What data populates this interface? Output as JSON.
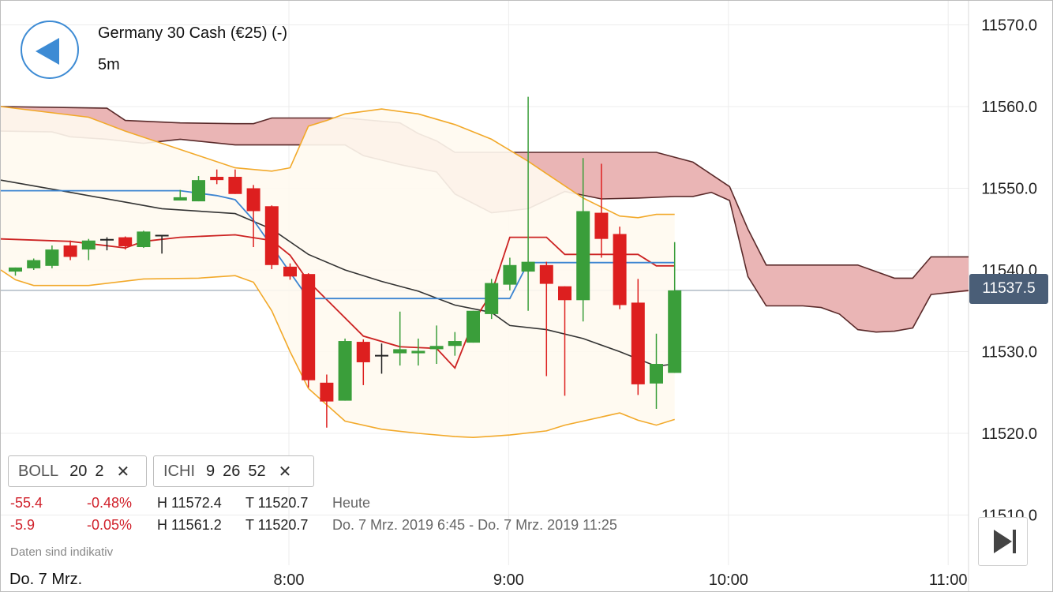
{
  "header": {
    "title": "Germany 30 Cash (€25) (-)",
    "timeframe": "5m"
  },
  "indicators": [
    {
      "name": "BOLL",
      "params": [
        "20",
        "2"
      ]
    },
    {
      "name": "ICHI",
      "params": [
        "9",
        "26",
        "52"
      ]
    }
  ],
  "stats": [
    {
      "change": "-55.4",
      "percent": "-0.48%",
      "high": "H 11572.4",
      "low": "T 11520.7",
      "period": "Heute"
    },
    {
      "change": "-5.9",
      "percent": "-0.05%",
      "high": "H 11561.2",
      "low": "T 11520.7",
      "period": "Do. 7 Mrz. 2019 6:45 - Do. 7 Mrz. 2019 11:25"
    }
  ],
  "disclaimer": "Daten sind indikativ",
  "date_label": "Do. 7 Mrz.",
  "current_price": "11537.5",
  "colors": {
    "up": "#3a9e3a",
    "down": "#dd1f1f",
    "doji": "#222222",
    "bollinger": "#f2a92a",
    "bollinger_fill": "#fffaf0",
    "kijun": "#cc2222",
    "tenkan": "#3d85d1",
    "chikou": "#333333",
    "kumo_bear": "#eab5b5",
    "kumo_bull": "#c4e2c0",
    "span": "#5a2a2a",
    "accent": "#3d8bd4"
  },
  "icons": {
    "back": "chevron-left-icon",
    "close": "close-icon",
    "end": "skip-to-end-icon"
  },
  "chart_data": {
    "type": "candlestick",
    "ylim": [
      11505,
      11575
    ],
    "yticks": [
      11510.0,
      11520.0,
      11530.0,
      11540.0,
      11550.0,
      11560.0,
      11570.0
    ],
    "ytick_labels": [
      "11510.0",
      "11520.0",
      "11530.0",
      "11540.0",
      "11550.0",
      "11560.0",
      "11570.0"
    ],
    "xlim": [
      "6:45",
      "11:25"
    ],
    "xticks": [
      "8:00",
      "9:00",
      "10:00",
      "11:00"
    ],
    "current_price": 11537.5,
    "grid": true,
    "candles": [
      {
        "t": "6:45",
        "o": 11539.8,
        "h": 11540.3,
        "l": 11539.3,
        "c": 11540.3
      },
      {
        "t": "6:50",
        "o": 11540.2,
        "h": 11541.4,
        "l": 11540.0,
        "c": 11541.2
      },
      {
        "t": "6:55",
        "o": 11540.5,
        "h": 11543.0,
        "l": 11540.2,
        "c": 11542.5
      },
      {
        "t": "7:00",
        "o": 11543.0,
        "h": 11543.6,
        "l": 11541.2,
        "c": 11541.6
      },
      {
        "t": "7:05",
        "o": 11542.5,
        "h": 11543.8,
        "l": 11541.2,
        "c": 11543.6
      },
      {
        "t": "7:10",
        "o": 11543.7,
        "h": 11544.0,
        "l": 11542.4,
        "c": 11543.5
      },
      {
        "t": "7:15",
        "o": 11544.0,
        "h": 11544.1,
        "l": 11542.5,
        "c": 11542.9
      },
      {
        "t": "7:20",
        "o": 11542.8,
        "h": 11544.8,
        "l": 11542.7,
        "c": 11544.7
      },
      {
        "t": "7:25",
        "o": 11544.2,
        "h": 11544.3,
        "l": 11542.0,
        "c": 11544.2
      },
      {
        "t": "7:30",
        "o": 11548.5,
        "h": 11549.8,
        "l": 11548.5,
        "c": 11548.9
      },
      {
        "t": "7:35",
        "o": 11548.4,
        "h": 11551.5,
        "l": 11548.4,
        "c": 11551.0
      },
      {
        "t": "7:40",
        "o": 11551.4,
        "h": 11552.3,
        "l": 11550.5,
        "c": 11551.0
      },
      {
        "t": "7:45",
        "o": 11551.4,
        "h": 11552.3,
        "l": 11549.3,
        "c": 11549.3
      },
      {
        "t": "7:50",
        "o": 11550.0,
        "h": 11550.4,
        "l": 11542.8,
        "c": 11547.2
      },
      {
        "t": "7:55",
        "o": 11547.8,
        "h": 11547.9,
        "l": 11540.1,
        "c": 11540.6
      },
      {
        "t": "8:00",
        "o": 11540.4,
        "h": 11540.8,
        "l": 11538.8,
        "c": 11539.2
      },
      {
        "t": "8:05",
        "o": 11539.5,
        "h": 11539.6,
        "l": 11525.6,
        "c": 11526.5
      },
      {
        "t": "8:10",
        "o": 11526.2,
        "h": 11527.2,
        "l": 11520.7,
        "c": 11523.9
      },
      {
        "t": "8:15",
        "o": 11524.0,
        "h": 11531.6,
        "l": 11524.0,
        "c": 11531.3
      },
      {
        "t": "8:20",
        "o": 11531.2,
        "h": 11531.5,
        "l": 11525.9,
        "c": 11528.7
      },
      {
        "t": "8:25",
        "o": 11529.5,
        "h": 11531.0,
        "l": 11527.3,
        "c": 11529.3
      },
      {
        "t": "8:30",
        "o": 11529.8,
        "h": 11534.9,
        "l": 11528.3,
        "c": 11530.3
      },
      {
        "t": "8:35",
        "o": 11529.8,
        "h": 11531.6,
        "l": 11528.3,
        "c": 11530.1
      },
      {
        "t": "8:40",
        "o": 11530.3,
        "h": 11533.2,
        "l": 11528.5,
        "c": 11530.7
      },
      {
        "t": "8:45",
        "o": 11530.7,
        "h": 11532.4,
        "l": 11529.5,
        "c": 11531.3
      },
      {
        "t": "8:50",
        "o": 11531.1,
        "h": 11535.0,
        "l": 11531.1,
        "c": 11535.0
      },
      {
        "t": "8:55",
        "o": 11534.6,
        "h": 11538.9,
        "l": 11534.0,
        "c": 11538.4
      },
      {
        "t": "9:00",
        "o": 11538.2,
        "h": 11541.5,
        "l": 11537.5,
        "c": 11540.6
      },
      {
        "t": "9:05",
        "o": 11539.8,
        "h": 11561.2,
        "l": 11535.0,
        "c": 11541.0
      },
      {
        "t": "9:10",
        "o": 11540.6,
        "h": 11541.0,
        "l": 11527.0,
        "c": 11538.3
      },
      {
        "t": "9:15",
        "o": 11538.0,
        "h": 11538.0,
        "l": 11524.6,
        "c": 11536.3
      },
      {
        "t": "9:20",
        "o": 11536.3,
        "h": 11553.7,
        "l": 11533.7,
        "c": 11547.2
      },
      {
        "t": "9:25",
        "o": 11547.0,
        "h": 11553.0,
        "l": 11541.5,
        "c": 11543.8
      },
      {
        "t": "9:30",
        "o": 11544.4,
        "h": 11545.3,
        "l": 11535.2,
        "c": 11535.7
      },
      {
        "t": "9:35",
        "o": 11536.0,
        "h": 11538.9,
        "l": 11524.7,
        "c": 11526.0
      },
      {
        "t": "9:40",
        "o": 11526.1,
        "h": 11532.2,
        "l": 11523.0,
        "c": 11528.5
      },
      {
        "t": "9:45",
        "o": 11527.4,
        "h": 11543.4,
        "l": 11527.4,
        "c": 11537.5
      }
    ],
    "bollinger_upper": [
      [
        -2,
        11560.0
      ],
      [
        4,
        11558.7
      ],
      [
        6,
        11557.0
      ],
      [
        10,
        11554.0
      ],
      [
        12,
        11552.5
      ],
      [
        14,
        11552.1
      ],
      [
        15,
        11552.5
      ],
      [
        16,
        11557.6
      ],
      [
        17,
        11558.3
      ],
      [
        18,
        11559.1
      ],
      [
        20,
        11559.7
      ],
      [
        22,
        11559.1
      ],
      [
        24,
        11557.8
      ],
      [
        26,
        11556.0
      ],
      [
        28,
        11553.3
      ],
      [
        29,
        11551.8
      ],
      [
        31,
        11548.8
      ],
      [
        33,
        11546.6
      ],
      [
        34,
        11546.4
      ],
      [
        35,
        11546.8
      ],
      [
        36,
        11546.8
      ]
    ],
    "bollinger_lower": [
      [
        -2,
        11540.0
      ],
      [
        0,
        11538.8
      ],
      [
        1,
        11538.1
      ],
      [
        4,
        11538.1
      ],
      [
        7,
        11538.9
      ],
      [
        10,
        11539.0
      ],
      [
        12,
        11539.3
      ],
      [
        13,
        11538.5
      ],
      [
        14,
        11535.0
      ],
      [
        15,
        11530.0
      ],
      [
        16,
        11525.5
      ],
      [
        18,
        11521.5
      ],
      [
        20,
        11520.5
      ],
      [
        22,
        11520.0
      ],
      [
        24,
        11519.6
      ],
      [
        25,
        11519.5
      ],
      [
        27,
        11519.8
      ],
      [
        29,
        11520.3
      ],
      [
        30,
        11521.0
      ],
      [
        33,
        11522.5
      ],
      [
        34,
        11521.6
      ],
      [
        35,
        11521.0
      ],
      [
        36,
        11521.7
      ]
    ],
    "bollinger_mid": [],
    "kijun_sen": [
      [
        -2,
        11543.8
      ],
      [
        3,
        11543.5
      ],
      [
        6,
        11542.7
      ],
      [
        7,
        11543.5
      ],
      [
        9,
        11544.0
      ],
      [
        11,
        11544.2
      ],
      [
        12,
        11544.3
      ],
      [
        14,
        11543.6
      ],
      [
        15,
        11541.8
      ],
      [
        16,
        11538.6
      ],
      [
        19,
        11531.9
      ],
      [
        21,
        11530.6
      ],
      [
        23,
        11530.4
      ],
      [
        24,
        11528.0
      ],
      [
        25,
        11533.6
      ],
      [
        26,
        11537.2
      ],
      [
        27,
        11544.0
      ],
      [
        29,
        11544.0
      ],
      [
        30,
        11541.9
      ],
      [
        34,
        11541.9
      ],
      [
        35,
        11540.5
      ],
      [
        36,
        11540.5
      ]
    ],
    "tenkan_sen": [
      [
        -2,
        11549.7
      ],
      [
        9,
        11549.7
      ],
      [
        11,
        11549.1
      ],
      [
        12,
        11548.6
      ],
      [
        13,
        11546.1
      ],
      [
        16,
        11536.5
      ],
      [
        27,
        11536.5
      ],
      [
        28,
        11540.9
      ],
      [
        36,
        11540.9
      ]
    ],
    "chikou_span": [
      [
        -2,
        11551.0
      ],
      [
        3,
        11549.5
      ],
      [
        6,
        11548.3
      ],
      [
        8,
        11547.5
      ],
      [
        12,
        11546.9
      ],
      [
        14,
        11545.0
      ],
      [
        16,
        11541.9
      ],
      [
        18,
        11540.0
      ],
      [
        20,
        11538.6
      ],
      [
        22,
        11537.4
      ],
      [
        24,
        11535.7
      ],
      [
        26,
        11534.8
      ],
      [
        27,
        11533.2
      ],
      [
        29,
        11532.7
      ],
      [
        31,
        11531.6
      ],
      [
        33,
        11530.0
      ],
      [
        35,
        11528.2
      ],
      [
        36,
        11528.5
      ]
    ],
    "senkou_span_a": [
      [
        -2,
        11560.0
      ],
      [
        5,
        11559.8
      ],
      [
        6,
        11558.3
      ],
      [
        9,
        11558.0
      ],
      [
        12,
        11557.9
      ],
      [
        13,
        11557.9
      ],
      [
        14,
        11558.6
      ],
      [
        16,
        11558.6
      ],
      [
        18,
        11558.6
      ],
      [
        21,
        11558.0
      ],
      [
        22,
        11556.7
      ],
      [
        23,
        11555.8
      ],
      [
        24,
        11554.4
      ],
      [
        25,
        11554.4
      ],
      [
        28,
        11554.4
      ],
      [
        30,
        11554.4
      ],
      [
        32,
        11554.4
      ],
      [
        35,
        11554.4
      ],
      [
        37,
        11553.2
      ],
      [
        38,
        11551.7
      ],
      [
        39,
        11550.2
      ],
      [
        40,
        11545.0
      ],
      [
        41,
        11540.6
      ],
      [
        43,
        11540.6
      ],
      [
        44,
        11540.6
      ],
      [
        46,
        11540.6
      ],
      [
        48,
        11539.0
      ],
      [
        49,
        11539.0
      ],
      [
        50,
        11541.6
      ],
      [
        53,
        11541.6
      ]
    ],
    "senkou_span_b": [
      [
        -2,
        11557.0
      ],
      [
        2,
        11556.9
      ],
      [
        3,
        11556.3
      ],
      [
        5,
        11556.0
      ],
      [
        7,
        11555.5
      ],
      [
        9,
        11556.0
      ],
      [
        12,
        11555.3
      ],
      [
        14,
        11555.3
      ],
      [
        16,
        11555.3
      ],
      [
        18,
        11555.3
      ],
      [
        19,
        11554.0
      ],
      [
        21,
        11552.9
      ],
      [
        23,
        11552.0
      ],
      [
        24,
        11549.3
      ],
      [
        26,
        11547.0
      ],
      [
        28,
        11547.5
      ],
      [
        30,
        11549.6
      ],
      [
        32,
        11548.7
      ],
      [
        34,
        11548.8
      ],
      [
        36,
        11549.0
      ],
      [
        37,
        11549.0
      ],
      [
        38,
        11549.5
      ],
      [
        39,
        11548.5
      ],
      [
        40,
        11539.2
      ],
      [
        41,
        11535.6
      ],
      [
        43,
        11535.6
      ],
      [
        44,
        11535.4
      ],
      [
        45,
        11534.6
      ],
      [
        46,
        11532.7
      ],
      [
        47,
        11532.4
      ],
      [
        48,
        11532.5
      ],
      [
        49,
        11532.9
      ],
      [
        50,
        11537.0
      ],
      [
        53,
        11537.5
      ]
    ]
  }
}
